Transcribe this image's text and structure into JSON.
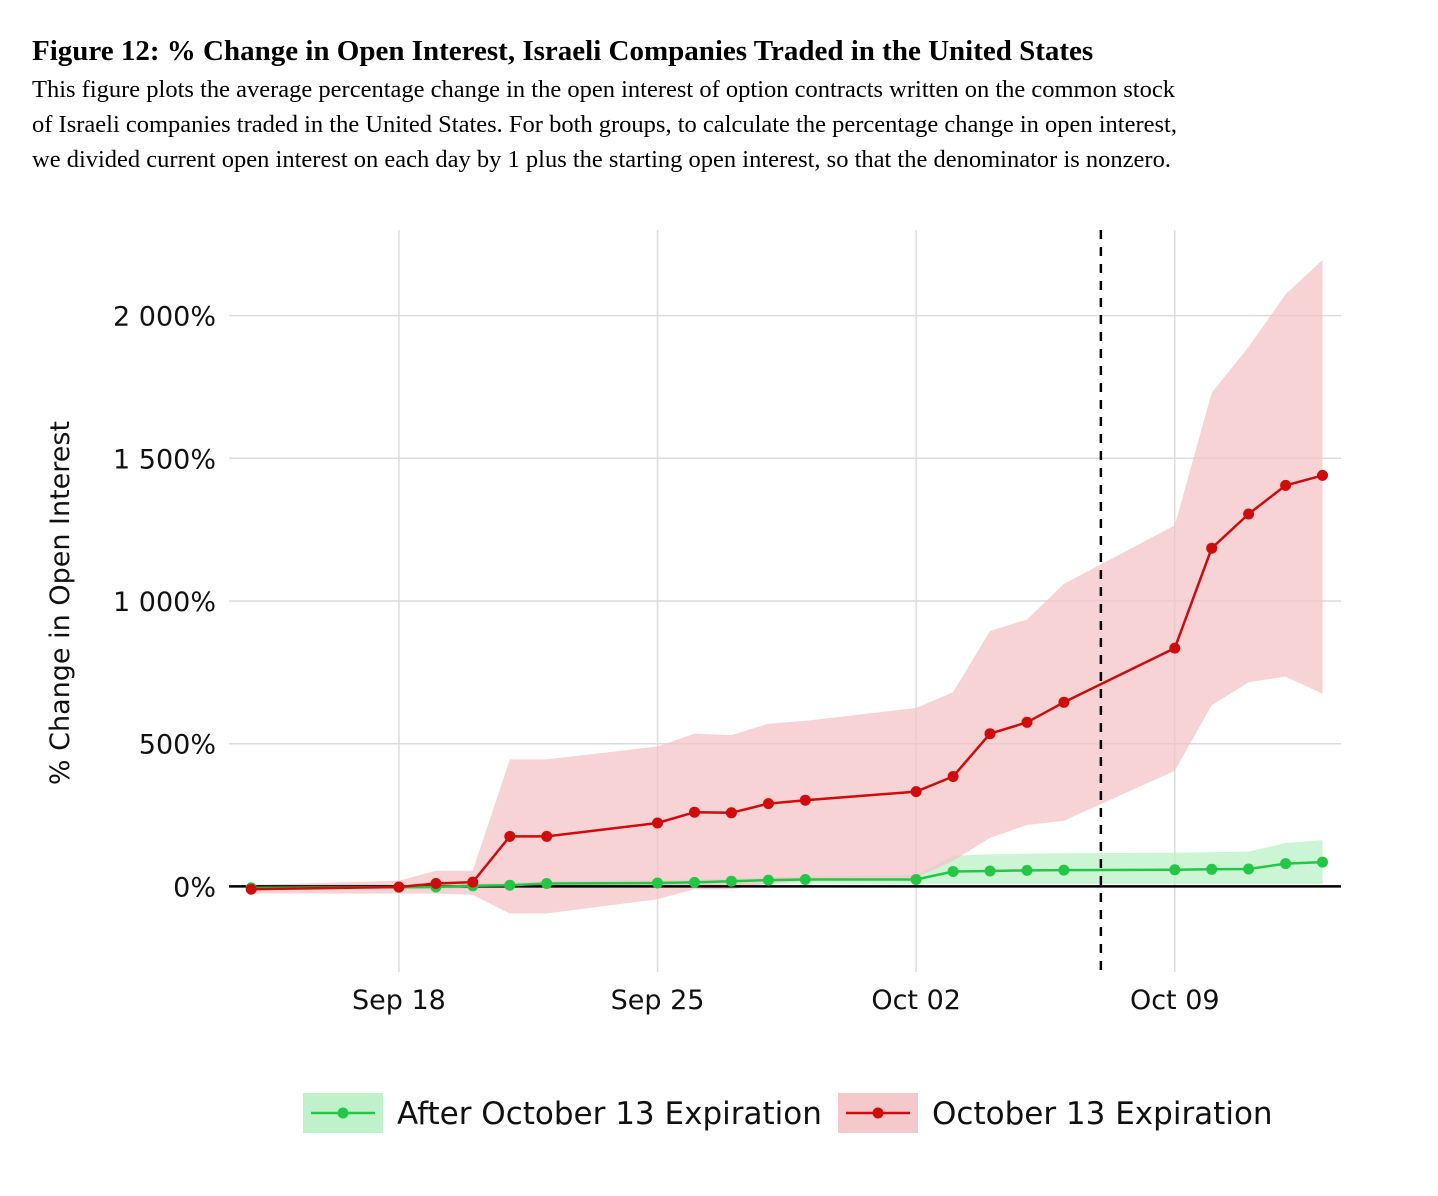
{
  "title": "Figure 12: % Change in Open Interest, Israeli Companies Traded in the United States",
  "caption_lines": [
    "This figure plots the average percentage change in the open interest of option contracts written on the common stock",
    "of Israeli companies traded in the United States. For both groups, to calculate the percentage change in open interest,",
    "we divided current open interest on each day by 1 plus the starting open interest, so that the denominator is nonzero."
  ],
  "colors": {
    "red": "#d10a0a",
    "red_band": "#f4c2c6",
    "green": "#22c744",
    "green_band": "#bff2cb",
    "grid": "#dcdcdc",
    "zero_line": "#000000",
    "event_line": "#000000"
  },
  "chart_data": {
    "type": "line",
    "title": "",
    "xlabel": "",
    "ylabel": "% Change in Open Interest",
    "x_ticks": [
      {
        "label": "Sep 18",
        "day": 18
      },
      {
        "label": "Sep 25",
        "day": 25
      },
      {
        "label": "Oct 02",
        "day": 32
      },
      {
        "label": "Oct 09",
        "day": 39
      }
    ],
    "y_ticks": [
      {
        "label": "0%",
        "value": 0
      },
      {
        "label": "500%",
        "value": 500
      },
      {
        "label": "1 000%",
        "value": 1000
      },
      {
        "label": "1 500%",
        "value": 1500
      },
      {
        "label": "2 000%",
        "value": 2000
      }
    ],
    "xlim": [
      13.4,
      43.5
    ],
    "ylim": [
      -300,
      2300
    ],
    "event_line_day": 37,
    "series": [
      {
        "name": "After October 13 Expiration",
        "color_key": "green",
        "points": [
          {
            "day": 14,
            "y": -5,
            "lo": -15,
            "hi": 5
          },
          {
            "day": 18,
            "y": -3,
            "lo": -12,
            "hi": 6
          },
          {
            "day": 19,
            "y": -2,
            "lo": -12,
            "hi": 8
          },
          {
            "day": 20,
            "y": 2,
            "lo": -8,
            "hi": 12
          },
          {
            "day": 21,
            "y": 4,
            "lo": -5,
            "hi": 14
          },
          {
            "day": 22,
            "y": 10,
            "lo": 0,
            "hi": 20
          },
          {
            "day": 25,
            "y": 12,
            "lo": 2,
            "hi": 22
          },
          {
            "day": 26,
            "y": 14,
            "lo": 4,
            "hi": 24
          },
          {
            "day": 27,
            "y": 18,
            "lo": 6,
            "hi": 28
          },
          {
            "day": 28,
            "y": 22,
            "lo": 8,
            "hi": 32
          },
          {
            "day": 29,
            "y": 24,
            "lo": 10,
            "hi": 34
          },
          {
            "day": 32,
            "y": 24,
            "lo": 8,
            "hi": 40
          },
          {
            "day": 33,
            "y": 52,
            "lo": 8,
            "hi": 108
          },
          {
            "day": 34,
            "y": 54,
            "lo": 8,
            "hi": 112
          },
          {
            "day": 35,
            "y": 56,
            "lo": 8,
            "hi": 115
          },
          {
            "day": 36,
            "y": 57,
            "lo": 8,
            "hi": 116
          },
          {
            "day": 39,
            "y": 58,
            "lo": 8,
            "hi": 118
          },
          {
            "day": 40,
            "y": 60,
            "lo": 8,
            "hi": 120
          },
          {
            "day": 41,
            "y": 61,
            "lo": 8,
            "hi": 122
          },
          {
            "day": 42,
            "y": 80,
            "lo": 8,
            "hi": 152
          },
          {
            "day": 43,
            "y": 85,
            "lo": 8,
            "hi": 162
          }
        ]
      },
      {
        "name": "October 13 Expiration",
        "color_key": "red",
        "points": [
          {
            "day": 14,
            "y": -10,
            "lo": -25,
            "hi": 5
          },
          {
            "day": 18,
            "y": -2,
            "lo": -25,
            "hi": 20
          },
          {
            "day": 19,
            "y": 10,
            "lo": -25,
            "hi": 55
          },
          {
            "day": 20,
            "y": 15,
            "lo": -30,
            "hi": 55
          },
          {
            "day": 21,
            "y": 175,
            "lo": -95,
            "hi": 445
          },
          {
            "day": 22,
            "y": 175,
            "lo": -95,
            "hi": 445
          },
          {
            "day": 25,
            "y": 222,
            "lo": -45,
            "hi": 490
          },
          {
            "day": 26,
            "y": 260,
            "lo": -10,
            "hi": 535
          },
          {
            "day": 27,
            "y": 258,
            "lo": -10,
            "hi": 530
          },
          {
            "day": 28,
            "y": 290,
            "lo": 10,
            "hi": 570
          },
          {
            "day": 29,
            "y": 302,
            "lo": 20,
            "hi": 580
          },
          {
            "day": 32,
            "y": 332,
            "lo": 30,
            "hi": 625
          },
          {
            "day": 33,
            "y": 385,
            "lo": 90,
            "hi": 680
          },
          {
            "day": 34,
            "y": 535,
            "lo": 170,
            "hi": 895
          },
          {
            "day": 35,
            "y": 575,
            "lo": 215,
            "hi": 935
          },
          {
            "day": 36,
            "y": 645,
            "lo": 230,
            "hi": 1060
          },
          {
            "day": 39,
            "y": 835,
            "lo": 405,
            "hi": 1265
          },
          {
            "day": 40,
            "y": 1185,
            "lo": 635,
            "hi": 1730
          },
          {
            "day": 41,
            "y": 1305,
            "lo": 715,
            "hi": 1890
          },
          {
            "day": 42,
            "y": 1405,
            "lo": 735,
            "hi": 2075
          },
          {
            "day": 43,
            "y": 1440,
            "lo": 675,
            "hi": 2195
          }
        ]
      }
    ],
    "legend": [
      {
        "label": "After October 13 Expiration",
        "color_key": "green"
      },
      {
        "label": "October 13 Expiration",
        "color_key": "red"
      }
    ],
    "legend_position": "bottom"
  }
}
